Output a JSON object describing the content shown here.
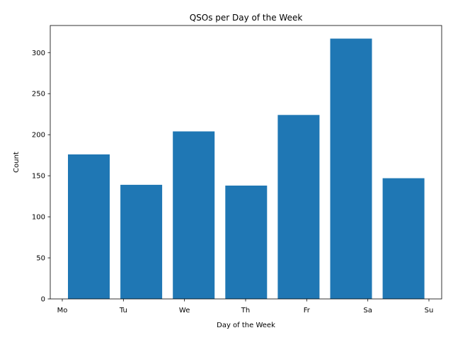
{
  "chart_data": {
    "type": "bar",
    "title": "QSOs per Day of the Week",
    "xlabel": "Day of the Week",
    "ylabel": "Count",
    "x_tick_labels": [
      "Mo",
      "Tu",
      "We",
      "Th",
      "Fr",
      "Sa",
      "Su"
    ],
    "values": [
      176,
      139,
      204,
      138,
      224,
      317,
      147
    ],
    "ylim": [
      0,
      333
    ],
    "y_ticks": [
      0,
      50,
      100,
      150,
      200,
      250,
      300
    ],
    "grid": false,
    "bar_color": "#1f77b4"
  }
}
